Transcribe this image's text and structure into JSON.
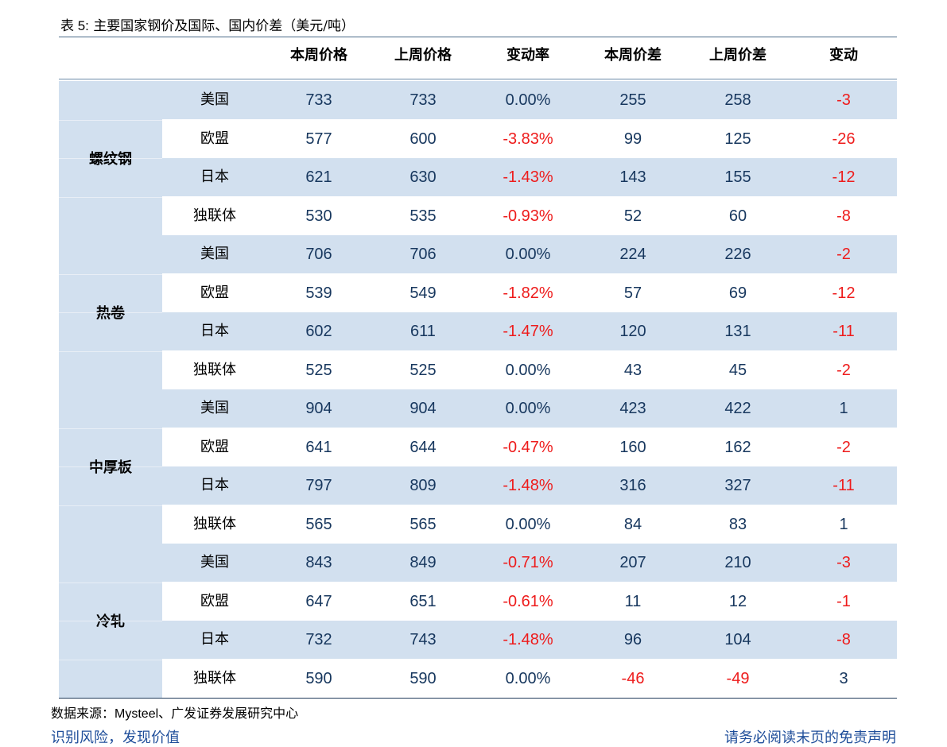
{
  "title": {
    "label": "表 5:",
    "text": "主要国家钢价及国际、国内价差（美元/吨）"
  },
  "columns": [
    "本周价格",
    "上周价格",
    "变动率",
    "本周价差",
    "上周价差",
    "变动"
  ],
  "groups": [
    {
      "name": "螺纹钢",
      "rows": [
        {
          "region": "美国",
          "this_price": "733",
          "last_price": "733",
          "rate": "0.00%",
          "this_spread": "255",
          "last_spread": "258",
          "change": "-3"
        },
        {
          "region": "欧盟",
          "this_price": "577",
          "last_price": "600",
          "rate": "-3.83%",
          "this_spread": "99",
          "last_spread": "125",
          "change": "-26"
        },
        {
          "region": "日本",
          "this_price": "621",
          "last_price": "630",
          "rate": "-1.43%",
          "this_spread": "143",
          "last_spread": "155",
          "change": "-12"
        },
        {
          "region": "独联体",
          "this_price": "530",
          "last_price": "535",
          "rate": "-0.93%",
          "this_spread": "52",
          "last_spread": "60",
          "change": "-8"
        }
      ]
    },
    {
      "name": "热卷",
      "rows": [
        {
          "region": "美国",
          "this_price": "706",
          "last_price": "706",
          "rate": "0.00%",
          "this_spread": "224",
          "last_spread": "226",
          "change": "-2"
        },
        {
          "region": "欧盟",
          "this_price": "539",
          "last_price": "549",
          "rate": "-1.82%",
          "this_spread": "57",
          "last_spread": "69",
          "change": "-12"
        },
        {
          "region": "日本",
          "this_price": "602",
          "last_price": "611",
          "rate": "-1.47%",
          "this_spread": "120",
          "last_spread": "131",
          "change": "-11"
        },
        {
          "region": "独联体",
          "this_price": "525",
          "last_price": "525",
          "rate": "0.00%",
          "this_spread": "43",
          "last_spread": "45",
          "change": "-2"
        }
      ]
    },
    {
      "name": "中厚板",
      "rows": [
        {
          "region": "美国",
          "this_price": "904",
          "last_price": "904",
          "rate": "0.00%",
          "this_spread": "423",
          "last_spread": "422",
          "change": "1"
        },
        {
          "region": "欧盟",
          "this_price": "641",
          "last_price": "644",
          "rate": "-0.47%",
          "this_spread": "160",
          "last_spread": "162",
          "change": "-2"
        },
        {
          "region": "日本",
          "this_price": "797",
          "last_price": "809",
          "rate": "-1.48%",
          "this_spread": "316",
          "last_spread": "327",
          "change": "-11"
        },
        {
          "region": "独联体",
          "this_price": "565",
          "last_price": "565",
          "rate": "0.00%",
          "this_spread": "84",
          "last_spread": "83",
          "change": "1"
        }
      ]
    },
    {
      "name": "冷轧",
      "rows": [
        {
          "region": "美国",
          "this_price": "843",
          "last_price": "849",
          "rate": "-0.71%",
          "this_spread": "207",
          "last_spread": "210",
          "change": "-3"
        },
        {
          "region": "欧盟",
          "this_price": "647",
          "last_price": "651",
          "rate": "-0.61%",
          "this_spread": "11",
          "last_spread": "12",
          "change": "-1"
        },
        {
          "region": "日本",
          "this_price": "732",
          "last_price": "743",
          "rate": "-1.48%",
          "this_spread": "96",
          "last_spread": "104",
          "change": "-8"
        },
        {
          "region": "独联体",
          "this_price": "590",
          "last_price": "590",
          "rate": "0.00%",
          "this_spread": "-46",
          "last_spread": "-49",
          "change": "3"
        }
      ]
    }
  ],
  "source": {
    "label": "数据来源：",
    "text_en": "Mysteel",
    "text_cn": "、广发证券发展研究中心"
  },
  "footer": {
    "left": "识别风险，发现价值",
    "right": "请务必阅读末页的免责声明"
  },
  "colors": {
    "shade": "#d2e0ef",
    "negative": "#ee1c1c",
    "positive": "#17375e",
    "rule": "#1f3a5a"
  }
}
